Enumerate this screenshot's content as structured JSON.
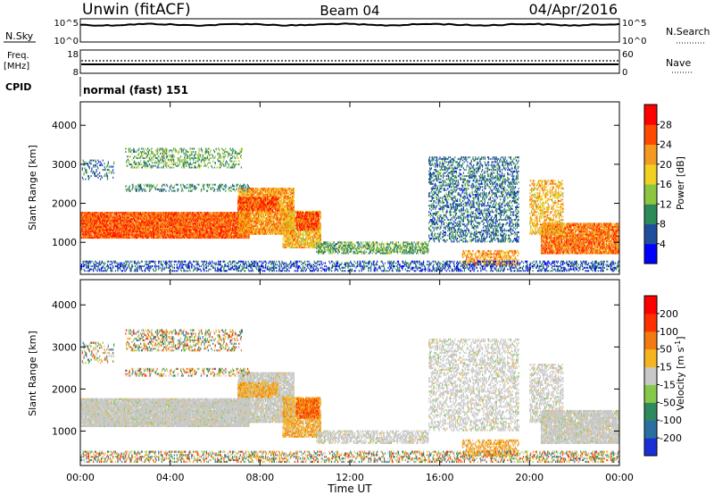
{
  "header": {
    "station": "Unwin (fitACF)",
    "beam": "Beam 04",
    "date": "04/Apr/2016"
  },
  "top_panels": {
    "nsky": {
      "label": "N.Sky",
      "ticks": [
        "10^5",
        "10^0"
      ]
    },
    "nsearch": {
      "label": "N.Search",
      "ticks": [
        "10^5",
        "10^0"
      ]
    },
    "freq": {
      "label_line1": "Freq.",
      "label_line2": "[MHz]",
      "ticks": [
        "18",
        "8"
      ]
    },
    "nave": {
      "label": "Nave",
      "ticks": [
        "60",
        "0"
      ]
    },
    "cpid": {
      "label": "CPID",
      "value": "normal (fast) 151"
    }
  },
  "chart_data": [
    {
      "type": "heatmap",
      "title": "",
      "xlabel": "",
      "ylabel": "Slant Range [km]",
      "xlim": [
        0,
        24
      ],
      "ylim": [
        180,
        4600
      ],
      "x_ticks": [
        "00:00",
        "04:00",
        "08:00",
        "12:00",
        "16:00",
        "20:00",
        "00:00"
      ],
      "y_ticks": [
        1000,
        2000,
        3000,
        4000
      ],
      "colorbar": {
        "label": "Power [dB]",
        "range": [
          0,
          32
        ],
        "ticks": [
          "4",
          "8",
          "12",
          "16",
          "20",
          "24",
          "28"
        ],
        "colors": [
          "#0000ff",
          "#1f4f9c",
          "#2c8a5a",
          "#8dc63f",
          "#f0d020",
          "#f49a20",
          "#ff4a00",
          "#ff0000"
        ]
      }
    },
    {
      "type": "heatmap",
      "title": "",
      "xlabel": "Time UT",
      "ylabel": "Slant Range [km]",
      "xlim": [
        0,
        24
      ],
      "ylim": [
        180,
        4600
      ],
      "x_ticks": [
        "00:00",
        "04:00",
        "08:00",
        "12:00",
        "16:00",
        "20:00",
        "00:00"
      ],
      "y_ticks": [
        1000,
        2000,
        3000,
        4000
      ],
      "colorbar": {
        "label": "Velocity [m s",
        "label_sup": "-1",
        "label_end": "]",
        "ticks": [
          "200",
          "100",
          "50",
          "15",
          "-15",
          "-50",
          "-100",
          "-200"
        ],
        "colors": [
          "#1a2fd6",
          "#2a6fa0",
          "#2e8a5e",
          "#86c94a",
          "#c8c8c8",
          "#f5b520",
          "#f27a10",
          "#ff3000",
          "#ff0000"
        ]
      }
    }
  ]
}
